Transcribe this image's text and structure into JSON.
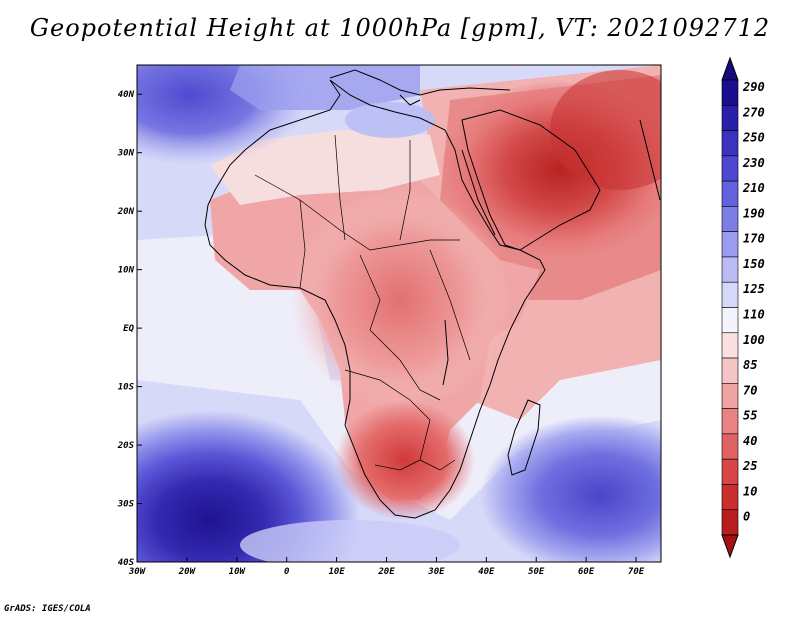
{
  "title": "Geopotential Height at 1000hPa [gpm], VT: 2021092712",
  "credit": "GrADS: IGES/COLA",
  "lon_labels": [
    "30W",
    "20W",
    "10W",
    "0",
    "10E",
    "20E",
    "30E",
    "40E",
    "50E",
    "60E",
    "70E"
  ],
  "lat_labels": [
    "40N",
    "30N",
    "20N",
    "10N",
    "EQ",
    "10S",
    "20S",
    "30S",
    "40S"
  ],
  "map_extent": {
    "lon_min": -30,
    "lon_max": 75,
    "lat_min": -40,
    "lat_max": 45
  },
  "colorbar": {
    "labels": [
      "290",
      "270",
      "250",
      "230",
      "210",
      "190",
      "170",
      "150",
      "125",
      "110",
      "100",
      "85",
      "70",
      "55",
      "40",
      "25",
      "10",
      "0"
    ],
    "colors": [
      "#1a0f8f",
      "#2a1fa8",
      "#3a33bf",
      "#4d48cf",
      "#6462dc",
      "#7d7de6",
      "#9a9cee",
      "#b9bcf4",
      "#d6d8f9",
      "#f4f4fc",
      "#fbe0e0",
      "#f6c4c4",
      "#f0a3a3",
      "#e98282",
      "#e06262",
      "#d64646",
      "#c92f2f",
      "#b81c1c"
    ],
    "below_color": "#a51010",
    "above_color": "#150a80"
  }
}
